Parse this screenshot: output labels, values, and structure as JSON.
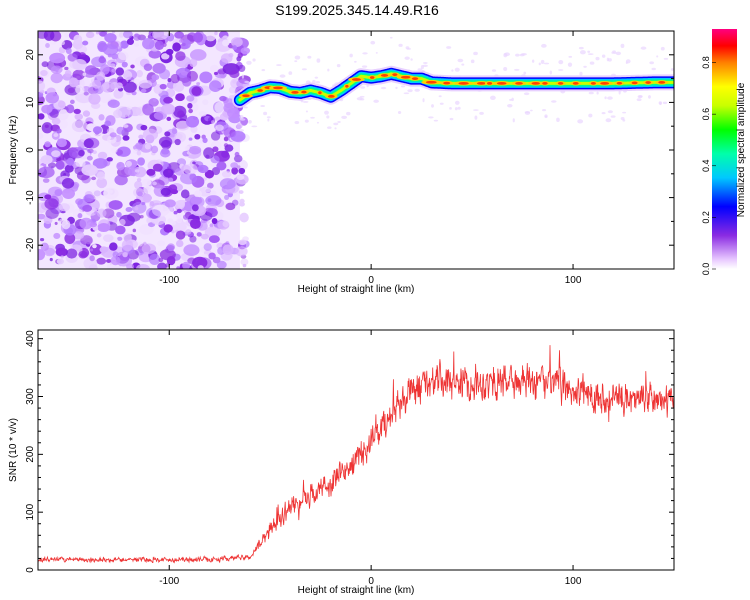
{
  "title": "S199.2025.345.14.49.R16",
  "chart_data": [
    {
      "type": "heatmap",
      "name": "spectrogram",
      "xlabel": "Height of straight line (km)",
      "ylabel": "Frequency (Hz)",
      "xlim": [
        -165,
        150
      ],
      "ylim": [
        -25,
        25
      ],
      "xticks": [
        -100,
        0,
        100
      ],
      "xtick_labels": [
        "-100",
        "0",
        "100"
      ],
      "yticks": [
        -20,
        -10,
        0,
        10,
        20
      ],
      "ytick_labels": [
        "-20",
        "-10",
        "0",
        "10",
        "20"
      ],
      "noise_region_x": [
        -165,
        -65
      ],
      "signal_trace": {
        "x": [
          -65,
          -60,
          -55,
          -50,
          -45,
          -40,
          -35,
          -30,
          -25,
          -20,
          -15,
          -10,
          -5,
          0,
          5,
          10,
          15,
          20,
          25,
          30,
          40,
          60,
          80,
          100,
          120,
          140,
          150
        ],
        "freq": [
          10.5,
          12.0,
          12.5,
          13.2,
          13.0,
          12.2,
          12.0,
          12.5,
          12.0,
          11.2,
          12.5,
          14.0,
          15.5,
          15.2,
          15.5,
          16.0,
          15.5,
          15.0,
          15.0,
          14.2,
          14.0,
          14.0,
          14.0,
          14.0,
          14.0,
          14.2,
          14.2
        ]
      },
      "colorbar": {
        "label": "Normalized spectral amplitude",
        "range": [
          0,
          0.93
        ],
        "ticks": [
          0.0,
          0.2,
          0.4,
          0.6,
          0.8
        ],
        "tick_labels": [
          "0.0",
          "0.2",
          "0.4",
          "0.6",
          "0.8"
        ]
      }
    },
    {
      "type": "line",
      "name": "snr",
      "xlabel": "Height of straight line (km)",
      "ylabel": "SNR (10 * v/v)",
      "xlim": [
        -165,
        150
      ],
      "ylim": [
        0,
        415
      ],
      "xticks": [
        -100,
        0,
        100
      ],
      "xtick_labels": [
        "-100",
        "0",
        "100"
      ],
      "yticks": [
        0,
        100,
        200,
        300,
        400
      ],
      "ytick_labels": [
        "0",
        "100",
        "200",
        "300",
        "400"
      ],
      "color": "#ee3333",
      "trend": {
        "x": [
          -165,
          -120,
          -80,
          -60,
          -50,
          -40,
          -30,
          -20,
          -10,
          0,
          10,
          20,
          30,
          50,
          80,
          100,
          120,
          150
        ],
        "y": [
          18,
          18,
          18,
          22,
          70,
          110,
          130,
          150,
          180,
          220,
          270,
          310,
          325,
          325,
          325,
          310,
          300,
          290
        ]
      },
      "noise_amplitude": {
        "x": [
          -165,
          -60,
          -50,
          -20,
          0,
          20,
          40,
          80,
          150
        ],
        "y": [
          10,
          12,
          40,
          60,
          70,
          75,
          85,
          80,
          70
        ]
      }
    }
  ]
}
